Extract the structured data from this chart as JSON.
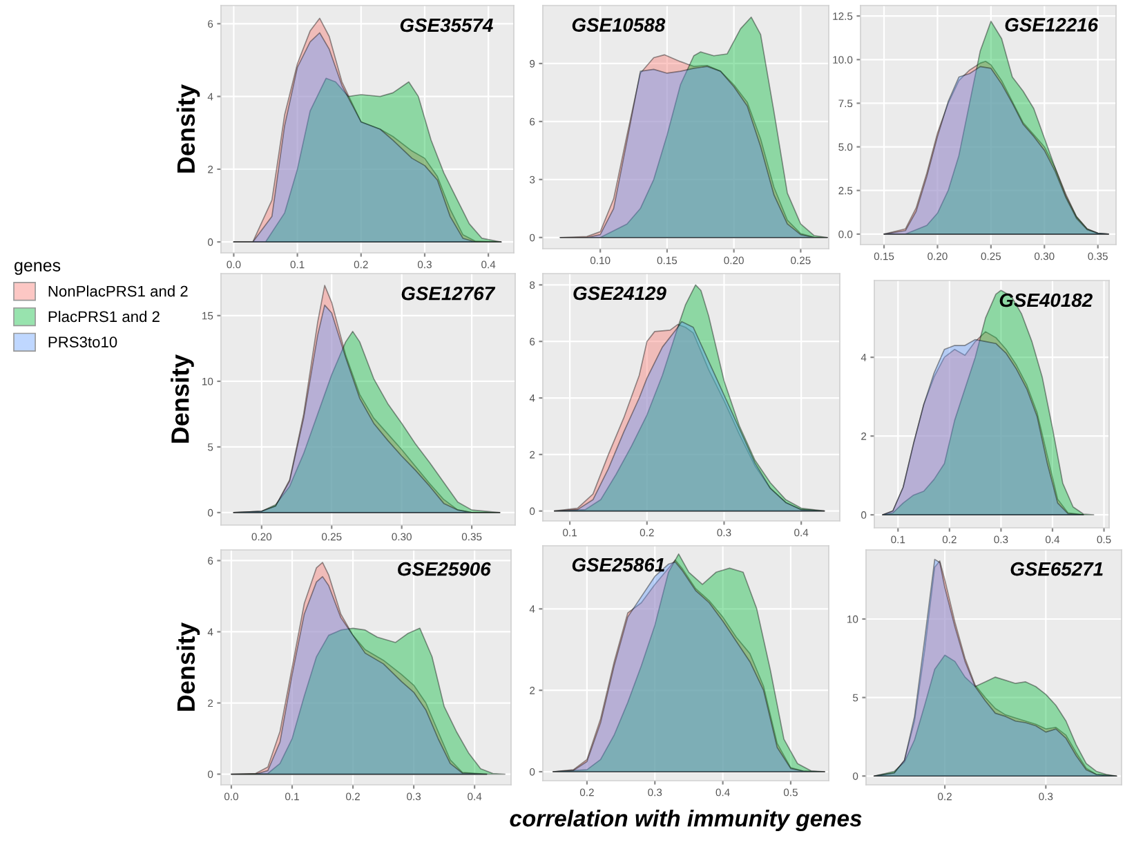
{
  "chart_data": [
    {
      "type": "area",
      "title": "GSE35574",
      "ylabel": "Density",
      "legend": "left",
      "legend_title": "genes",
      "grid": true,
      "xlim": [
        -0.02,
        0.44
      ],
      "ylim": [
        -0.3,
        6.5
      ],
      "xticks": [
        {
          "value": 0,
          "label": "0.0"
        },
        0.1,
        0.2,
        0.3,
        0.4
      ],
      "yticks": [
        0,
        2,
        4,
        6
      ],
      "series": [
        {
          "name": "NonPlacPRS1 and 2",
          "color": "#f8766d",
          "x": [
            0,
            0.03,
            0.06,
            0.08,
            0.1,
            0.12,
            0.135,
            0.15,
            0.17,
            0.2,
            0.23,
            0.25,
            0.28,
            0.3,
            0.32,
            0.34,
            0.36,
            0.38,
            0.42
          ],
          "values": [
            0,
            0,
            1.15,
            3.5,
            4.9,
            5.8,
            6.15,
            5.65,
            4.4,
            3.3,
            3.1,
            2.9,
            2.5,
            2.3,
            1.8,
            0.9,
            0.2,
            0.02,
            0
          ]
        },
        {
          "name": "PlacPRS1 and 2",
          "color": "#00ba38",
          "x": [
            0,
            0.05,
            0.08,
            0.1,
            0.12,
            0.145,
            0.16,
            0.18,
            0.2,
            0.23,
            0.25,
            0.275,
            0.29,
            0.31,
            0.33,
            0.35,
            0.37,
            0.39,
            0.42
          ],
          "values": [
            0,
            0,
            0.8,
            2.0,
            3.6,
            4.5,
            4.4,
            4.0,
            4.05,
            4.0,
            4.1,
            4.4,
            4.0,
            2.8,
            1.9,
            1.2,
            0.5,
            0.1,
            0
          ]
        },
        {
          "name": "PRS3to10",
          "color": "#619cff",
          "x": [
            0,
            0.03,
            0.06,
            0.08,
            0.1,
            0.12,
            0.135,
            0.15,
            0.17,
            0.2,
            0.23,
            0.25,
            0.28,
            0.3,
            0.32,
            0.34,
            0.36,
            0.38,
            0.42
          ],
          "values": [
            0,
            0,
            0.7,
            3.2,
            4.8,
            5.5,
            5.75,
            5.3,
            4.3,
            3.3,
            3.1,
            2.8,
            2.3,
            2.1,
            1.7,
            0.7,
            0.1,
            0,
            0
          ]
        }
      ]
    },
    {
      "type": "area",
      "title": "GSE10588",
      "grid": true,
      "xlim": [
        0.057,
        0.271
      ],
      "ylim": [
        -0.58,
        12.0
      ],
      "xticks": [
        {
          "value": 0.1,
          "label": "0.10"
        },
        0.15,
        {
          "value": 0.2,
          "label": "0.20"
        },
        0.25
      ],
      "yticks": [
        0,
        3,
        6,
        9
      ],
      "series": [
        {
          "color": "#f8766d",
          "x": [
            0.07,
            0.09,
            0.1,
            0.11,
            0.12,
            0.13,
            0.14,
            0.148,
            0.16,
            0.17,
            0.18,
            0.19,
            0.2,
            0.21,
            0.22,
            0.23,
            0.24,
            0.25,
            0.26,
            0.27
          ],
          "values": [
            0,
            0.05,
            0.3,
            2.0,
            5.3,
            8.5,
            9.3,
            9.45,
            9.1,
            8.85,
            8.9,
            8.6,
            7.9,
            7.0,
            5.1,
            2.6,
            0.9,
            0.2,
            0.02,
            0
          ]
        },
        {
          "color": "#00ba38",
          "x": [
            0.07,
            0.1,
            0.12,
            0.13,
            0.14,
            0.15,
            0.16,
            0.17,
            0.175,
            0.185,
            0.195,
            0.205,
            0.213,
            0.22,
            0.23,
            0.24,
            0.25,
            0.26,
            0.27
          ],
          "values": [
            0,
            0,
            0.7,
            1.5,
            3.0,
            5.3,
            7.9,
            9.4,
            9.6,
            9.4,
            9.5,
            10.8,
            11.4,
            10.5,
            6.5,
            2.3,
            0.7,
            0.1,
            0
          ]
        },
        {
          "color": "#619cff",
          "x": [
            0.07,
            0.09,
            0.1,
            0.11,
            0.12,
            0.13,
            0.14,
            0.15,
            0.16,
            0.17,
            0.18,
            0.19,
            0.2,
            0.21,
            0.22,
            0.23,
            0.24,
            0.25,
            0.26,
            0.27
          ],
          "values": [
            0,
            0,
            0.15,
            1.5,
            5.0,
            8.6,
            8.7,
            8.5,
            8.6,
            8.75,
            8.85,
            8.6,
            7.8,
            6.8,
            4.7,
            2.2,
            0.7,
            0.15,
            0,
            0
          ]
        }
      ]
    },
    {
      "type": "area",
      "title": "GSE12216",
      "grid": true,
      "xlim": [
        0.128,
        0.367
      ],
      "ylim": [
        -0.6,
        13.1
      ],
      "xticks": [
        0.15,
        {
          "value": 0.2,
          "label": "0.20"
        },
        0.25,
        {
          "value": 0.3,
          "label": "0.30"
        },
        0.35
      ],
      "yticks": [
        {
          "value": 0,
          "label": "0.0"
        },
        2.5,
        {
          "value": 5,
          "label": "5.0"
        },
        7.5,
        {
          "value": 10,
          "label": "10.0"
        },
        12.5
      ],
      "series": [
        {
          "color": "#f8766d",
          "x": [
            0.15,
            0.17,
            0.18,
            0.19,
            0.2,
            0.21,
            0.22,
            0.23,
            0.24,
            0.245,
            0.25,
            0.26,
            0.27,
            0.28,
            0.29,
            0.3,
            0.31,
            0.32,
            0.33,
            0.34,
            0.35,
            0.36
          ],
          "values": [
            0,
            0.3,
            1.5,
            3.5,
            5.8,
            7.5,
            8.8,
            9.4,
            9.8,
            9.9,
            9.7,
            8.8,
            7.6,
            6.4,
            5.7,
            5.0,
            3.8,
            2.3,
            1.0,
            0.3,
            0.05,
            0
          ]
        },
        {
          "color": "#00ba38",
          "x": [
            0.15,
            0.17,
            0.19,
            0.2,
            0.21,
            0.22,
            0.23,
            0.24,
            0.25,
            0.26,
            0.27,
            0.28,
            0.29,
            0.3,
            0.31,
            0.32,
            0.33,
            0.34,
            0.35,
            0.36
          ],
          "values": [
            0,
            0,
            0.5,
            1.2,
            2.5,
            4.5,
            7.5,
            10.5,
            12.2,
            11.2,
            9.0,
            8.2,
            7.2,
            5.5,
            3.8,
            2.2,
            1.0,
            0.3,
            0.05,
            0
          ]
        },
        {
          "color": "#619cff",
          "x": [
            0.15,
            0.17,
            0.18,
            0.19,
            0.2,
            0.21,
            0.22,
            0.23,
            0.24,
            0.25,
            0.26,
            0.27,
            0.28,
            0.29,
            0.3,
            0.31,
            0.32,
            0.33,
            0.34,
            0.35,
            0.36
          ],
          "values": [
            0,
            0.2,
            1.3,
            3.3,
            5.6,
            7.6,
            9.0,
            9.2,
            9.6,
            9.5,
            8.6,
            7.5,
            6.3,
            5.6,
            4.8,
            3.6,
            2.1,
            0.9,
            0.25,
            0.05,
            0
          ]
        }
      ]
    },
    {
      "type": "area",
      "title": "GSE12767",
      "ylabel": "Density",
      "grid": true,
      "xlim": [
        0.171,
        0.381
      ],
      "ylim": [
        -0.95,
        18.2
      ],
      "xticks": [
        {
          "value": 0.2,
          "label": "0.20"
        },
        0.25,
        {
          "value": 0.3,
          "label": "0.30"
        },
        0.35
      ],
      "yticks": [
        0,
        5,
        10,
        15
      ],
      "series": [
        {
          "color": "#f8766d",
          "x": [
            0.18,
            0.2,
            0.21,
            0.22,
            0.23,
            0.24,
            0.245,
            0.25,
            0.26,
            0.27,
            0.28,
            0.29,
            0.3,
            0.31,
            0.32,
            0.33,
            0.34,
            0.35,
            0.37
          ],
          "values": [
            0,
            0.1,
            0.5,
            2.5,
            7.5,
            14.5,
            17.3,
            16.0,
            12.0,
            9.0,
            7.2,
            6.0,
            4.8,
            3.5,
            2.2,
            1.0,
            0.2,
            0,
            0
          ]
        },
        {
          "color": "#00ba38",
          "x": [
            0.18,
            0.2,
            0.21,
            0.22,
            0.23,
            0.24,
            0.25,
            0.26,
            0.265,
            0.27,
            0.28,
            0.29,
            0.3,
            0.31,
            0.32,
            0.33,
            0.34,
            0.35,
            0.37
          ],
          "values": [
            0,
            0.1,
            0.6,
            2.0,
            4.5,
            7.5,
            10.5,
            13.0,
            13.8,
            13.0,
            10.2,
            8.3,
            6.8,
            5.2,
            3.8,
            2.3,
            0.8,
            0.2,
            0
          ]
        },
        {
          "color": "#619cff",
          "x": [
            0.18,
            0.2,
            0.21,
            0.22,
            0.23,
            0.24,
            0.245,
            0.25,
            0.26,
            0.27,
            0.28,
            0.29,
            0.3,
            0.31,
            0.32,
            0.33,
            0.34,
            0.35,
            0.37
          ],
          "values": [
            0,
            0.1,
            0.5,
            2.4,
            7.2,
            13.5,
            15.8,
            15.2,
            11.8,
            8.7,
            6.8,
            5.5,
            4.3,
            3.2,
            2.0,
            0.7,
            0.2,
            0,
            0
          ]
        }
      ]
    },
    {
      "type": "area",
      "title": "GSE24129",
      "grid": true,
      "xlim": [
        0.065,
        0.45
      ],
      "ylim": [
        -0.35,
        8.4
      ],
      "xticks": [
        0.1,
        0.2,
        0.3,
        0.4
      ],
      "yticks": [
        0,
        2,
        4,
        6,
        8
      ],
      "series": [
        {
          "color": "#f8766d",
          "x": [
            0.08,
            0.11,
            0.13,
            0.15,
            0.17,
            0.19,
            0.2,
            0.21,
            0.23,
            0.24,
            0.25,
            0.26,
            0.28,
            0.3,
            0.32,
            0.34,
            0.36,
            0.38,
            0.4,
            0.43
          ],
          "values": [
            0,
            0.1,
            0.6,
            2.0,
            3.3,
            4.8,
            6.0,
            6.35,
            6.4,
            6.6,
            6.5,
            6.3,
            5.0,
            3.9,
            2.7,
            1.6,
            0.8,
            0.3,
            0.05,
            0
          ]
        },
        {
          "color": "#00ba38",
          "x": [
            0.08,
            0.12,
            0.14,
            0.16,
            0.18,
            0.2,
            0.22,
            0.24,
            0.25,
            0.263,
            0.27,
            0.28,
            0.3,
            0.32,
            0.34,
            0.36,
            0.38,
            0.4,
            0.43
          ],
          "values": [
            0,
            0.05,
            0.4,
            1.3,
            2.3,
            3.4,
            4.8,
            6.5,
            7.3,
            8.0,
            7.8,
            6.9,
            4.6,
            3.0,
            1.8,
            1.0,
            0.4,
            0.1,
            0
          ]
        },
        {
          "color": "#619cff",
          "x": [
            0.08,
            0.11,
            0.13,
            0.15,
            0.17,
            0.19,
            0.2,
            0.22,
            0.24,
            0.245,
            0.26,
            0.28,
            0.3,
            0.32,
            0.34,
            0.36,
            0.38,
            0.4,
            0.43
          ],
          "values": [
            0,
            0.05,
            0.4,
            1.5,
            2.8,
            4.0,
            4.7,
            5.8,
            6.5,
            6.7,
            6.5,
            5.3,
            4.1,
            2.9,
            1.7,
            0.8,
            0.3,
            0.05,
            0
          ]
        }
      ]
    },
    {
      "type": "area",
      "title": "GSE40182",
      "grid": true,
      "xlim": [
        0.054,
        0.51
      ],
      "ylim": [
        -0.33,
        5.95
      ],
      "xticks": [
        0.1,
        0.2,
        0.3,
        0.4,
        0.5
      ],
      "yticks": [
        0,
        2,
        4
      ],
      "series": [
        {
          "color": "#f8766d",
          "x": [
            0.07,
            0.09,
            0.11,
            0.13,
            0.15,
            0.17,
            0.19,
            0.21,
            0.23,
            0.25,
            0.27,
            0.29,
            0.31,
            0.33,
            0.35,
            0.37,
            0.39,
            0.41,
            0.43,
            0.46
          ],
          "values": [
            0,
            0.1,
            0.7,
            1.8,
            2.8,
            3.5,
            4.0,
            4.2,
            4.05,
            4.4,
            4.65,
            4.5,
            4.2,
            3.8,
            3.3,
            2.6,
            1.5,
            0.4,
            0.05,
            0
          ]
        },
        {
          "color": "#00ba38",
          "x": [
            0.07,
            0.09,
            0.11,
            0.13,
            0.15,
            0.17,
            0.19,
            0.21,
            0.23,
            0.25,
            0.27,
            0.29,
            0.3,
            0.32,
            0.34,
            0.36,
            0.38,
            0.4,
            0.42,
            0.44,
            0.46,
            0.48
          ],
          "values": [
            0,
            0.05,
            0.3,
            0.5,
            0.6,
            0.9,
            1.3,
            2.4,
            3.2,
            4.0,
            5.0,
            5.6,
            5.7,
            5.55,
            5.1,
            4.4,
            3.5,
            2.2,
            0.8,
            0.2,
            0.02,
            0
          ]
        },
        {
          "color": "#619cff",
          "x": [
            0.07,
            0.09,
            0.11,
            0.13,
            0.15,
            0.17,
            0.19,
            0.21,
            0.23,
            0.25,
            0.27,
            0.29,
            0.31,
            0.33,
            0.35,
            0.37,
            0.39,
            0.41,
            0.43,
            0.46
          ],
          "values": [
            0,
            0.1,
            0.7,
            1.8,
            2.8,
            3.6,
            4.2,
            4.3,
            4.3,
            4.45,
            4.4,
            4.35,
            4.1,
            3.7,
            3.2,
            2.5,
            1.3,
            0.3,
            0.03,
            0
          ]
        }
      ]
    },
    {
      "type": "area",
      "title": "GSE25906",
      "ylabel": "Density",
      "grid": true,
      "xlim": [
        -0.017,
        0.46
      ],
      "ylim": [
        -0.3,
        6.3
      ],
      "xticks": [
        {
          "value": 0,
          "label": "0.0"
        },
        0.1,
        0.2,
        0.3,
        0.4
      ],
      "yticks": [
        0,
        2,
        4,
        6
      ],
      "series": [
        {
          "color": "#f8766d",
          "x": [
            0,
            0.04,
            0.06,
            0.08,
            0.1,
            0.12,
            0.14,
            0.15,
            0.16,
            0.18,
            0.2,
            0.22,
            0.25,
            0.28,
            0.3,
            0.32,
            0.34,
            0.36,
            0.38,
            0.42
          ],
          "values": [
            0,
            0.02,
            0.2,
            1.2,
            3.0,
            4.8,
            5.8,
            5.95,
            5.6,
            4.5,
            3.9,
            3.5,
            3.2,
            2.8,
            2.5,
            2.0,
            1.2,
            0.4,
            0.05,
            0
          ]
        },
        {
          "color": "#00ba38",
          "x": [
            0,
            0.06,
            0.08,
            0.1,
            0.12,
            0.14,
            0.16,
            0.18,
            0.2,
            0.22,
            0.24,
            0.27,
            0.29,
            0.31,
            0.33,
            0.35,
            0.37,
            0.39,
            0.41,
            0.43,
            0.45
          ],
          "values": [
            0,
            0.02,
            0.3,
            1.0,
            2.2,
            3.3,
            3.9,
            4.05,
            4.1,
            4.05,
            3.85,
            3.7,
            3.95,
            4.1,
            3.3,
            1.9,
            1.2,
            0.6,
            0.15,
            0.02,
            0
          ]
        },
        {
          "color": "#619cff",
          "x": [
            0,
            0.04,
            0.06,
            0.08,
            0.1,
            0.12,
            0.14,
            0.15,
            0.16,
            0.18,
            0.2,
            0.22,
            0.25,
            0.28,
            0.3,
            0.32,
            0.34,
            0.36,
            0.38,
            0.42
          ],
          "values": [
            0,
            0,
            0.1,
            0.9,
            2.8,
            4.5,
            5.4,
            5.55,
            5.3,
            4.4,
            3.9,
            3.4,
            3.1,
            2.6,
            2.3,
            1.8,
            1.0,
            0.3,
            0.03,
            0
          ]
        }
      ]
    },
    {
      "type": "area",
      "title": "GSE25861",
      "xlabel": "correlation with immunity genes",
      "grid": true,
      "xlim": [
        0.135,
        0.556
      ],
      "ylim": [
        -0.22,
        5.55
      ],
      "xticks": [
        0.2,
        0.3,
        0.4,
        0.5
      ],
      "yticks": [
        0,
        2,
        4
      ],
      "series": [
        {
          "color": "#f8766d",
          "x": [
            0.15,
            0.18,
            0.2,
            0.22,
            0.24,
            0.26,
            0.28,
            0.3,
            0.32,
            0.33,
            0.34,
            0.36,
            0.38,
            0.4,
            0.42,
            0.44,
            0.46,
            0.48,
            0.5,
            0.52,
            0.55
          ],
          "values": [
            0,
            0.05,
            0.3,
            1.3,
            2.7,
            3.9,
            4.15,
            4.6,
            5.0,
            5.2,
            5.0,
            4.5,
            4.2,
            3.8,
            3.3,
            2.9,
            2.1,
            0.7,
            0.1,
            0.01,
            0
          ]
        },
        {
          "color": "#00ba38",
          "x": [
            0.15,
            0.2,
            0.22,
            0.24,
            0.26,
            0.28,
            0.3,
            0.32,
            0.335,
            0.35,
            0.37,
            0.39,
            0.41,
            0.43,
            0.45,
            0.47,
            0.49,
            0.51,
            0.53,
            0.55
          ],
          "values": [
            0,
            0.05,
            0.3,
            0.9,
            1.7,
            2.6,
            3.6,
            4.9,
            5.35,
            4.9,
            4.6,
            4.9,
            5.0,
            4.9,
            4.0,
            2.5,
            0.8,
            0.2,
            0.02,
            0
          ]
        },
        {
          "color": "#619cff",
          "x": [
            0.15,
            0.18,
            0.2,
            0.22,
            0.24,
            0.26,
            0.28,
            0.3,
            0.32,
            0.33,
            0.34,
            0.36,
            0.38,
            0.4,
            0.42,
            0.44,
            0.46,
            0.48,
            0.5,
            0.52,
            0.55
          ],
          "values": [
            0,
            0.03,
            0.25,
            1.2,
            2.6,
            3.8,
            4.3,
            4.8,
            5.1,
            5.15,
            4.95,
            4.45,
            4.15,
            3.7,
            3.2,
            2.7,
            2.0,
            0.6,
            0.08,
            0.01,
            0
          ]
        }
      ]
    },
    {
      "type": "area",
      "title": "GSE65271",
      "grid": true,
      "xlim": [
        0.122,
        0.375
      ],
      "ylim": [
        -0.56,
        14.4
      ],
      "xticks": [
        0.2,
        0.3
      ],
      "yticks": [
        0,
        5,
        10
      ],
      "series": [
        {
          "color": "#f8766d",
          "x": [
            0.13,
            0.15,
            0.16,
            0.17,
            0.18,
            0.19,
            0.195,
            0.2,
            0.21,
            0.22,
            0.23,
            0.24,
            0.25,
            0.26,
            0.27,
            0.28,
            0.29,
            0.3,
            0.31,
            0.32,
            0.33,
            0.34,
            0.35,
            0.37
          ],
          "values": [
            0,
            0.2,
            1.0,
            3.5,
            8.0,
            13.3,
            13.7,
            12.5,
            9.8,
            7.5,
            5.8,
            5.0,
            4.3,
            3.9,
            3.7,
            3.5,
            3.3,
            3.0,
            3.1,
            2.6,
            1.5,
            0.5,
            0.1,
            0
          ]
        },
        {
          "color": "#00ba38",
          "x": [
            0.13,
            0.15,
            0.16,
            0.17,
            0.18,
            0.19,
            0.2,
            0.21,
            0.22,
            0.23,
            0.24,
            0.25,
            0.26,
            0.27,
            0.28,
            0.29,
            0.3,
            0.31,
            0.32,
            0.33,
            0.34,
            0.35,
            0.36,
            0.37
          ],
          "values": [
            0,
            0.3,
            0.9,
            2.3,
            4.5,
            6.8,
            7.7,
            7.3,
            6.3,
            5.7,
            6.0,
            6.3,
            6.1,
            5.9,
            6.0,
            5.7,
            5.2,
            4.5,
            3.5,
            2.0,
            0.8,
            0.3,
            0.1,
            0
          ]
        },
        {
          "color": "#619cff",
          "x": [
            0.13,
            0.15,
            0.16,
            0.17,
            0.18,
            0.19,
            0.195,
            0.2,
            0.21,
            0.22,
            0.23,
            0.24,
            0.25,
            0.26,
            0.27,
            0.28,
            0.29,
            0.3,
            0.31,
            0.32,
            0.33,
            0.34,
            0.35,
            0.37
          ],
          "values": [
            0,
            0.2,
            1.0,
            3.8,
            8.7,
            13.8,
            13.6,
            12.0,
            9.5,
            7.3,
            5.7,
            4.8,
            4.0,
            3.8,
            3.5,
            3.4,
            3.2,
            2.8,
            3.0,
            2.4,
            1.3,
            0.4,
            0.1,
            0
          ]
        }
      ]
    }
  ]
}
